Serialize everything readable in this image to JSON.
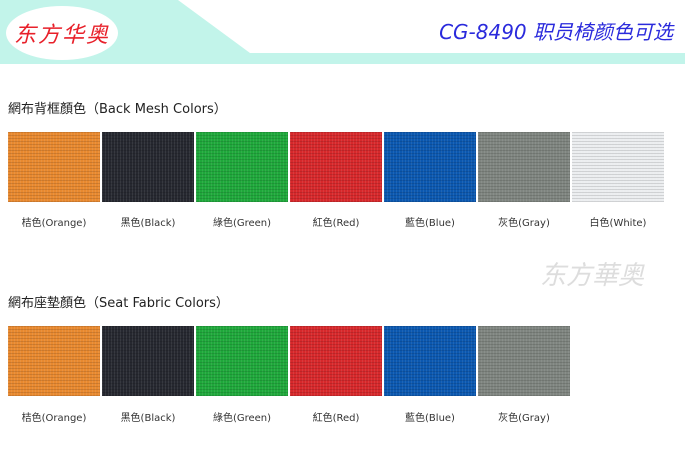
{
  "header": {
    "logo_text": "东方华奥",
    "title": "CG-8490 职员椅颜色可选",
    "band_color": "#c2f4ea",
    "title_color": "#2a2adc"
  },
  "back_mesh": {
    "title": "網布背框顏色（Back Mesh Colors）",
    "swatches": [
      {
        "label": "桔色(Orange)",
        "color": "#e8892f"
      },
      {
        "label": "黑色(Black)",
        "color": "#262830"
      },
      {
        "label": "綠色(Green)",
        "color": "#1fa83b"
      },
      {
        "label": "紅色(Red)",
        "color": "#d7282b"
      },
      {
        "label": "藍色(Blue)",
        "color": "#0b58b0"
      },
      {
        "label": "灰色(Gray)",
        "color": "#7f8580"
      },
      {
        "label": "白色(White)",
        "color": "#eceef0"
      }
    ]
  },
  "seat_fabric": {
    "title": "網布座墊顏色（Seat Fabric Colors）",
    "swatches": [
      {
        "label": "桔色(Orange)",
        "color": "#e8892f"
      },
      {
        "label": "黑色(Black)",
        "color": "#262830"
      },
      {
        "label": "綠色(Green)",
        "color": "#1fa83b"
      },
      {
        "label": "紅色(Red)",
        "color": "#d7282b"
      },
      {
        "label": "藍色(Blue)",
        "color": "#0b58b0"
      },
      {
        "label": "灰色(Gray)",
        "color": "#7f8580"
      }
    ]
  },
  "watermark": "东方華奥"
}
